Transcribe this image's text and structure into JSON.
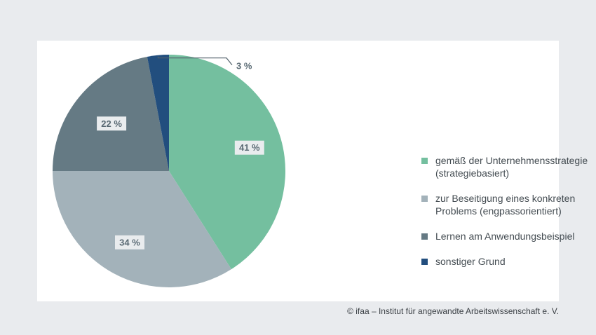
{
  "chart_data": {
    "type": "pie",
    "slices": [
      {
        "label": "gemäß der Unternehmensstrategie (strategiebasiert)",
        "value": 41,
        "display": "41 %",
        "color": "#74bf9f"
      },
      {
        "label": "zur Beseitigung eines konkreten Problems (engpassorientiert)",
        "value": 34,
        "display": "34 %",
        "color": "#a3b2ba"
      },
      {
        "label": "Lernen am Anwendungsbeispiel",
        "value": 22,
        "display": "22 %",
        "color": "#657a84"
      },
      {
        "label": "sonstiger Grund",
        "value": 3,
        "display": "3 %",
        "color": "#224e7e"
      }
    ],
    "start_angle_deg": 0,
    "direction": "clockwise",
    "legend_position": "right"
  },
  "legend": {
    "items": [
      {
        "line1": "gemäß der Unternehmensstrategie",
        "line2": "(strategiebasiert)",
        "color": "#74bf9f"
      },
      {
        "line1": "zur Beseitigung eines konkreten",
        "line2": "Problems (engpassorientiert)",
        "color": "#a3b2ba"
      },
      {
        "line1": "Lernen am Anwendungsbeispiel",
        "line2": "",
        "color": "#657a84"
      },
      {
        "line1": "sonstiger Grund",
        "line2": "",
        "color": "#224e7e"
      }
    ]
  },
  "footer": {
    "copyright": "© ifaa – Institut für angewandte Arbeitswissenschaft e. V."
  }
}
